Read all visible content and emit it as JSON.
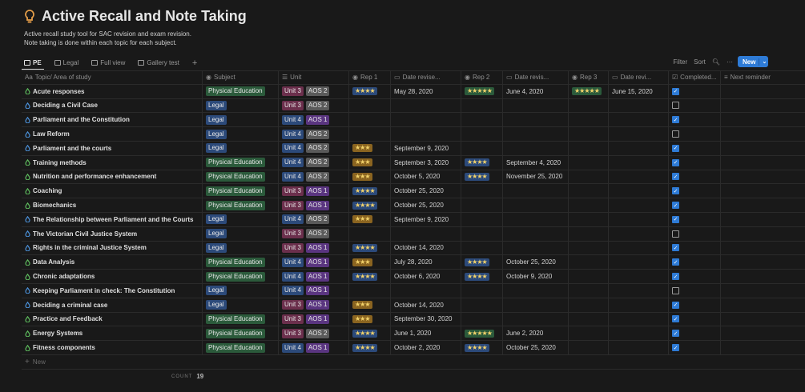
{
  "page": {
    "title": "Active Recall and Note Taking",
    "icon": "lightbulb-icon",
    "description": [
      "Active recall study tool for SAC revision and exam revision.",
      "Note taking is done within each topic for each subject."
    ]
  },
  "views": [
    {
      "label": "PE",
      "active": true
    },
    {
      "label": "Legal"
    },
    {
      "label": "Full view"
    },
    {
      "label": "Gallery test"
    }
  ],
  "toolbar": {
    "filter": "Filter",
    "sort": "Sort",
    "new": "New",
    "add_view": "+",
    "more": "···"
  },
  "columns": [
    "Topic/ Area of study",
    "Subject",
    "Unit",
    "Rep 1",
    "Date revise...",
    "Rep 2",
    "Date revis...",
    "Rep 3",
    "Date revi...",
    "Completed...",
    "Next reminder"
  ],
  "colors": {
    "pe": "#2b5a3b",
    "legal": "#2c4a7a",
    "accent": "#2e7bd6"
  },
  "rows": [
    {
      "topic": "Acute responses",
      "subject": "Physical Education",
      "unit": "Unit 3",
      "aos": "AOS 2",
      "rep1": "★★★★",
      "date1": "May 28, 2020",
      "rep2": "★★★★★",
      "date2": "June 4, 2020",
      "rep3": "★★★★★",
      "date3": "June 15, 2020",
      "completed": true
    },
    {
      "topic": "Deciding a Civil Case",
      "subject": "Legal",
      "unit": "Unit 3",
      "aos": "AOS 2",
      "completed": false
    },
    {
      "topic": "Parliament and the Constitution",
      "subject": "Legal",
      "unit": "Unit 4",
      "aos": "AOS 1",
      "completed": true
    },
    {
      "topic": "Law Reform",
      "subject": "Legal",
      "unit": "Unit 4",
      "aos": "AOS 2",
      "completed": false
    },
    {
      "topic": "Parliament and the courts",
      "subject": "Legal",
      "unit": "Unit 4",
      "aos": "AOS 2",
      "rep1": "★★★",
      "date1": "September 9, 2020",
      "completed": true
    },
    {
      "topic": "Training methods",
      "subject": "Physical Education",
      "unit": "Unit 4",
      "aos": "AOS 2",
      "rep1": "★★★",
      "date1": "September 3, 2020",
      "rep2": "★★★★",
      "date2": "September 4, 2020",
      "completed": true
    },
    {
      "topic": "Nutrition and performance enhancement",
      "subject": "Physical Education",
      "unit": "Unit 4",
      "aos": "AOS 2",
      "rep1": "★★★",
      "date1": "October 5, 2020",
      "rep2": "★★★★",
      "date2": "November 25, 2020",
      "completed": true
    },
    {
      "topic": "Coaching",
      "subject": "Physical Education",
      "unit": "Unit 3",
      "aos": "AOS 1",
      "rep1": "★★★★",
      "date1": "October 25, 2020",
      "completed": true
    },
    {
      "topic": "Biomechanics",
      "subject": "Physical Education",
      "unit": "Unit 3",
      "aos": "AOS 1",
      "rep1": "★★★★",
      "date1": "October 25, 2020",
      "completed": true
    },
    {
      "topic": "The Relationship between Parliament and the Courts",
      "subject": "Legal",
      "unit": "Unit 4",
      "aos": "AOS 2",
      "rep1": "★★★",
      "date1": "September 9, 2020",
      "completed": true
    },
    {
      "topic": "The Victorian Civil Justice System",
      "subject": "Legal",
      "unit": "Unit 3",
      "aos": "AOS 2",
      "completed": false
    },
    {
      "topic": "Rights in the criminal Justice System",
      "subject": "Legal",
      "unit": "Unit 3",
      "aos": "AOS 1",
      "rep1": "★★★★",
      "date1": "October 14, 2020",
      "completed": true
    },
    {
      "topic": "Data Analysis",
      "subject": "Physical Education",
      "unit": "Unit 4",
      "aos": "AOS 1",
      "rep1": "★★★",
      "date1": "July 28, 2020",
      "rep2": "★★★★",
      "date2": "October 25, 2020",
      "completed": true
    },
    {
      "topic": "Chronic adaptations",
      "subject": "Physical Education",
      "unit": "Unit 4",
      "aos": "AOS 1",
      "rep1": "★★★★",
      "date1": "October 6, 2020",
      "rep2": "★★★★",
      "date2": "October 9, 2020",
      "completed": true
    },
    {
      "topic": "Keeping Parliament in check: The Constitution",
      "subject": "Legal",
      "unit": "Unit 4",
      "aos": "AOS 1",
      "completed": false
    },
    {
      "topic": "Deciding a criminal case",
      "subject": "Legal",
      "unit": "Unit 3",
      "aos": "AOS 1",
      "rep1": "★★★",
      "date1": "October 14, 2020",
      "completed": true
    },
    {
      "topic": "Practice and Feedback",
      "subject": "Physical Education",
      "unit": "Unit 3",
      "aos": "AOS 1",
      "rep1": "★★★",
      "date1": "September 30, 2020",
      "completed": true
    },
    {
      "topic": "Energy Systems",
      "subject": "Physical Education",
      "unit": "Unit 3",
      "aos": "AOS 2",
      "rep1": "★★★★",
      "date1": "June 1, 2020",
      "rep2": "★★★★★",
      "date2": "June 2, 2020",
      "completed": true
    },
    {
      "topic": "Fitness components",
      "subject": "Physical Education",
      "unit": "Unit 4",
      "aos": "AOS 1",
      "rep1": "★★★★",
      "date1": "October 2, 2020",
      "rep2": "★★★★",
      "date2": "October 25, 2020",
      "completed": true
    }
  ],
  "footer": {
    "new_row": "New",
    "count_label": "COUNT",
    "count_value": "19"
  }
}
